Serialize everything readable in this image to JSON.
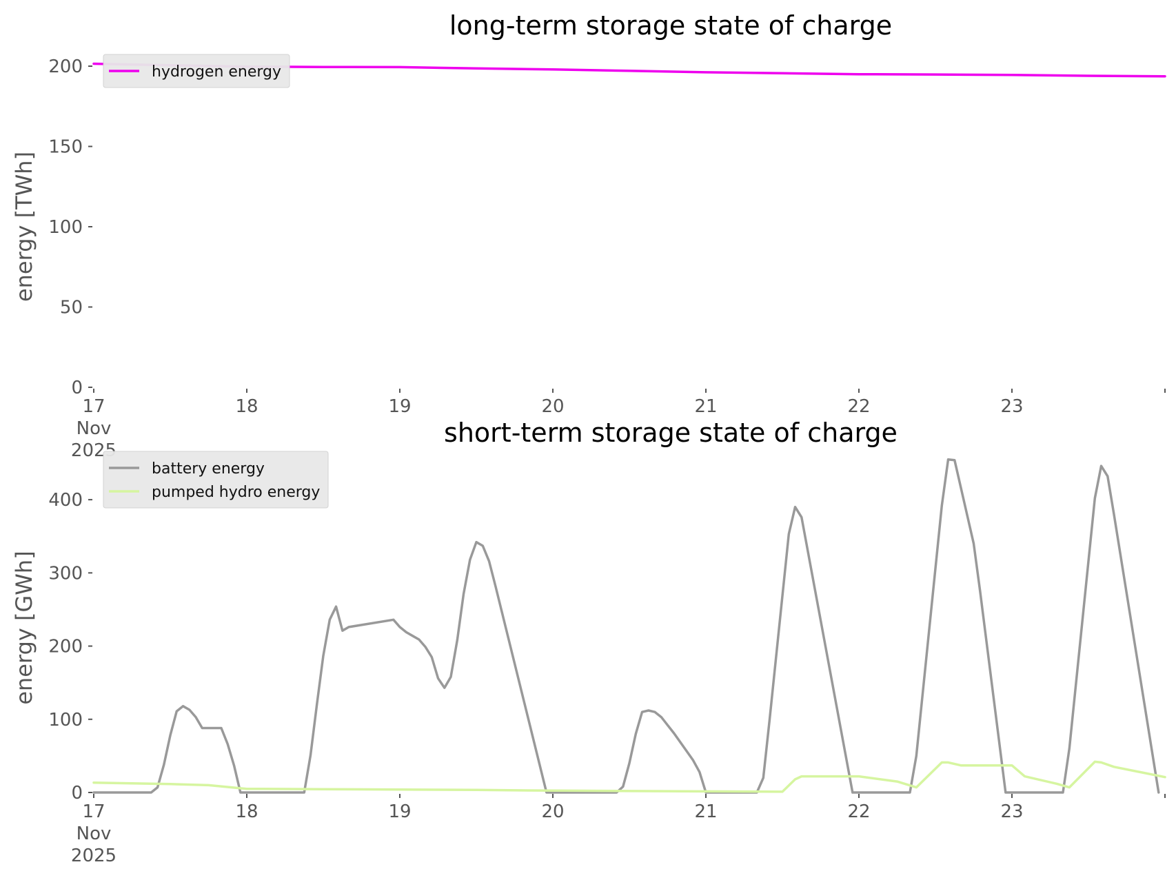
{
  "chart_data": [
    {
      "type": "line",
      "title": "long-term storage state of charge",
      "xlabel": "",
      "ylabel": "energy [TWh]",
      "ylim": [
        0,
        200
      ],
      "yticks": [
        0,
        50,
        100,
        150,
        200
      ],
      "xlim": [
        "2025-11-17",
        "2025-11-24"
      ],
      "xticks": [
        {
          "date": "2025-11-17",
          "lines": [
            "17",
            "Nov",
            "2025"
          ]
        },
        {
          "date": "2025-11-18",
          "lines": [
            "18"
          ]
        },
        {
          "date": "2025-11-19",
          "lines": [
            "19"
          ]
        },
        {
          "date": "2025-11-20",
          "lines": [
            "20"
          ]
        },
        {
          "date": "2025-11-21",
          "lines": [
            "21"
          ]
        },
        {
          "date": "2025-11-22",
          "lines": [
            "22"
          ]
        },
        {
          "date": "2025-11-23",
          "lines": [
            "23"
          ]
        }
      ],
      "grid": false,
      "legend": "top-left",
      "series": [
        {
          "name": "hydrogen energy",
          "color": "#ee00ee",
          "points": [
            [
              "2025-11-17 00:00",
              201.5
            ],
            [
              "2025-11-17 12:00",
              200.5
            ],
            [
              "2025-11-18 00:00",
              199.7
            ],
            [
              "2025-11-18 12:00",
              199.5
            ],
            [
              "2025-11-19 00:00",
              199.4
            ],
            [
              "2025-11-19 12:00",
              198.6
            ],
            [
              "2025-11-20 00:00",
              198.0
            ],
            [
              "2025-11-20 12:00",
              197.1
            ],
            [
              "2025-11-21 00:00",
              196.2
            ],
            [
              "2025-11-21 12:00",
              195.6
            ],
            [
              "2025-11-22 00:00",
              195.0
            ],
            [
              "2025-11-22 12:00",
              194.8
            ],
            [
              "2025-11-23 00:00",
              194.5
            ],
            [
              "2025-11-23 12:00",
              194.0
            ],
            [
              "2025-11-24 00:00",
              193.7
            ]
          ]
        }
      ]
    },
    {
      "type": "line",
      "title": "short-term storage state of charge",
      "xlabel": "",
      "ylabel": "energy [GWh]",
      "ylim": [
        0,
        450
      ],
      "yticks": [
        0,
        100,
        200,
        300,
        400
      ],
      "xlim": [
        "2025-11-17",
        "2025-11-24"
      ],
      "xticks": [
        {
          "date": "2025-11-17",
          "lines": [
            "17",
            "Nov",
            "2025"
          ]
        },
        {
          "date": "2025-11-18",
          "lines": [
            "18"
          ]
        },
        {
          "date": "2025-11-19",
          "lines": [
            "19"
          ]
        },
        {
          "date": "2025-11-20",
          "lines": [
            "20"
          ]
        },
        {
          "date": "2025-11-21",
          "lines": [
            "21"
          ]
        },
        {
          "date": "2025-11-22",
          "lines": [
            "22"
          ]
        },
        {
          "date": "2025-11-23",
          "lines": [
            "23"
          ]
        }
      ],
      "grid": false,
      "legend": "top-left",
      "series": [
        {
          "name": "battery energy",
          "color": "#999999",
          "points": [
            [
              "2025-11-17 00:00",
              0
            ],
            [
              "2025-11-17 09:00",
              0
            ],
            [
              "2025-11-17 10:00",
              7
            ],
            [
              "2025-11-17 11:00",
              38
            ],
            [
              "2025-11-17 12:00",
              78
            ],
            [
              "2025-11-17 13:00",
              111
            ],
            [
              "2025-11-17 14:00",
              118
            ],
            [
              "2025-11-17 15:00",
              113
            ],
            [
              "2025-11-17 16:00",
              103
            ],
            [
              "2025-11-17 17:00",
              88
            ],
            [
              "2025-11-17 18:00",
              88
            ],
            [
              "2025-11-17 19:00",
              88
            ],
            [
              "2025-11-17 20:00",
              88
            ],
            [
              "2025-11-17 21:00",
              66
            ],
            [
              "2025-11-17 22:00",
              37
            ],
            [
              "2025-11-17 23:00",
              0
            ],
            [
              "2025-11-18 09:00",
              0
            ],
            [
              "2025-11-18 10:00",
              51
            ],
            [
              "2025-11-18 11:00",
              121
            ],
            [
              "2025-11-18 12:00",
              187
            ],
            [
              "2025-11-18 13:00",
              236
            ],
            [
              "2025-11-18 14:00",
              254
            ],
            [
              "2025-11-18 15:00",
              221
            ],
            [
              "2025-11-18 16:00",
              226
            ],
            [
              "2025-11-18 23:00",
              236
            ],
            [
              "2025-11-19 00:00",
              226
            ],
            [
              "2025-11-19 01:00",
              219
            ],
            [
              "2025-11-19 02:00",
              214
            ],
            [
              "2025-11-19 03:00",
              209
            ],
            [
              "2025-11-19 04:00",
              199
            ],
            [
              "2025-11-19 05:00",
              185
            ],
            [
              "2025-11-19 06:00",
              156
            ],
            [
              "2025-11-19 07:00",
              143
            ],
            [
              "2025-11-19 08:00",
              158
            ],
            [
              "2025-11-19 09:00",
              208
            ],
            [
              "2025-11-19 10:00",
              271
            ],
            [
              "2025-11-19 11:00",
              318
            ],
            [
              "2025-11-19 12:00",
              342
            ],
            [
              "2025-11-19 13:00",
              337
            ],
            [
              "2025-11-19 14:00",
              316
            ],
            [
              "2025-11-19 15:00",
              282
            ],
            [
              "2025-11-19 23:00",
              0
            ],
            [
              "2025-11-20 10:00",
              0
            ],
            [
              "2025-11-20 11:00",
              8
            ],
            [
              "2025-11-20 12:00",
              40
            ],
            [
              "2025-11-20 13:00",
              80
            ],
            [
              "2025-11-20 14:00",
              110
            ],
            [
              "2025-11-20 15:00",
              112
            ],
            [
              "2025-11-20 16:00",
              110
            ],
            [
              "2025-11-20 17:00",
              103
            ],
            [
              "2025-11-20 18:00",
              92
            ],
            [
              "2025-11-20 19:00",
              81
            ],
            [
              "2025-11-20 22:00",
              44
            ],
            [
              "2025-11-20 23:00",
              28
            ],
            [
              "2025-11-21 00:00",
              0
            ],
            [
              "2025-11-21 08:00",
              0
            ],
            [
              "2025-11-21 09:00",
              20
            ],
            [
              "2025-11-21 10:00",
              100
            ],
            [
              "2025-11-21 13:00",
              353
            ],
            [
              "2025-11-21 14:00",
              390
            ],
            [
              "2025-11-21 15:00",
              376
            ],
            [
              "2025-11-21 23:00",
              0
            ],
            [
              "2025-11-22 08:00",
              0
            ],
            [
              "2025-11-22 09:00",
              50
            ],
            [
              "2025-11-22 13:00",
              392
            ],
            [
              "2025-11-22 14:00",
              455
            ],
            [
              "2025-11-22 15:00",
              454
            ],
            [
              "2025-11-22 18:00",
              340
            ],
            [
              "2025-11-22 19:00",
              275
            ],
            [
              "2025-11-22 23:00",
              0
            ],
            [
              "2025-11-23 08:00",
              0
            ],
            [
              "2025-11-23 09:00",
              60
            ],
            [
              "2025-11-23 13:00",
              402
            ],
            [
              "2025-11-23 14:00",
              446
            ],
            [
              "2025-11-23 15:00",
              432
            ],
            [
              "2025-11-23 16:00",
              380
            ],
            [
              "2025-11-23 23:00",
              0
            ]
          ]
        },
        {
          "name": "pumped hydro energy",
          "color": "#d6f5a0",
          "points": [
            [
              "2025-11-17 00:00",
              13.5
            ],
            [
              "2025-11-17 12:00",
              11.5
            ],
            [
              "2025-11-17 18:00",
              10
            ],
            [
              "2025-11-18 00:00",
              5
            ],
            [
              "2025-11-18 12:00",
              4.5
            ],
            [
              "2025-11-19 00:00",
              4
            ],
            [
              "2025-11-19 12:00",
              3.5
            ],
            [
              "2025-11-20 00:00",
              2.5
            ],
            [
              "2025-11-20 12:00",
              2
            ],
            [
              "2025-11-21 00:00",
              1.5
            ],
            [
              "2025-11-21 12:00",
              1
            ],
            [
              "2025-11-21 14:00",
              18
            ],
            [
              "2025-11-21 15:00",
              22
            ],
            [
              "2025-11-22 00:00",
              22
            ],
            [
              "2025-11-22 06:00",
              15
            ],
            [
              "2025-11-22 09:00",
              7
            ],
            [
              "2025-11-22 13:00",
              41
            ],
            [
              "2025-11-22 14:00",
              41
            ],
            [
              "2025-11-22 16:00",
              37
            ],
            [
              "2025-11-23 00:00",
              37
            ],
            [
              "2025-11-23 02:00",
              22
            ],
            [
              "2025-11-23 07:00",
              12
            ],
            [
              "2025-11-23 09:00",
              7
            ],
            [
              "2025-11-23 13:00",
              42
            ],
            [
              "2025-11-23 14:00",
              41
            ],
            [
              "2025-11-23 16:00",
              35
            ],
            [
              "2025-11-24 00:00",
              21
            ]
          ]
        }
      ]
    }
  ]
}
